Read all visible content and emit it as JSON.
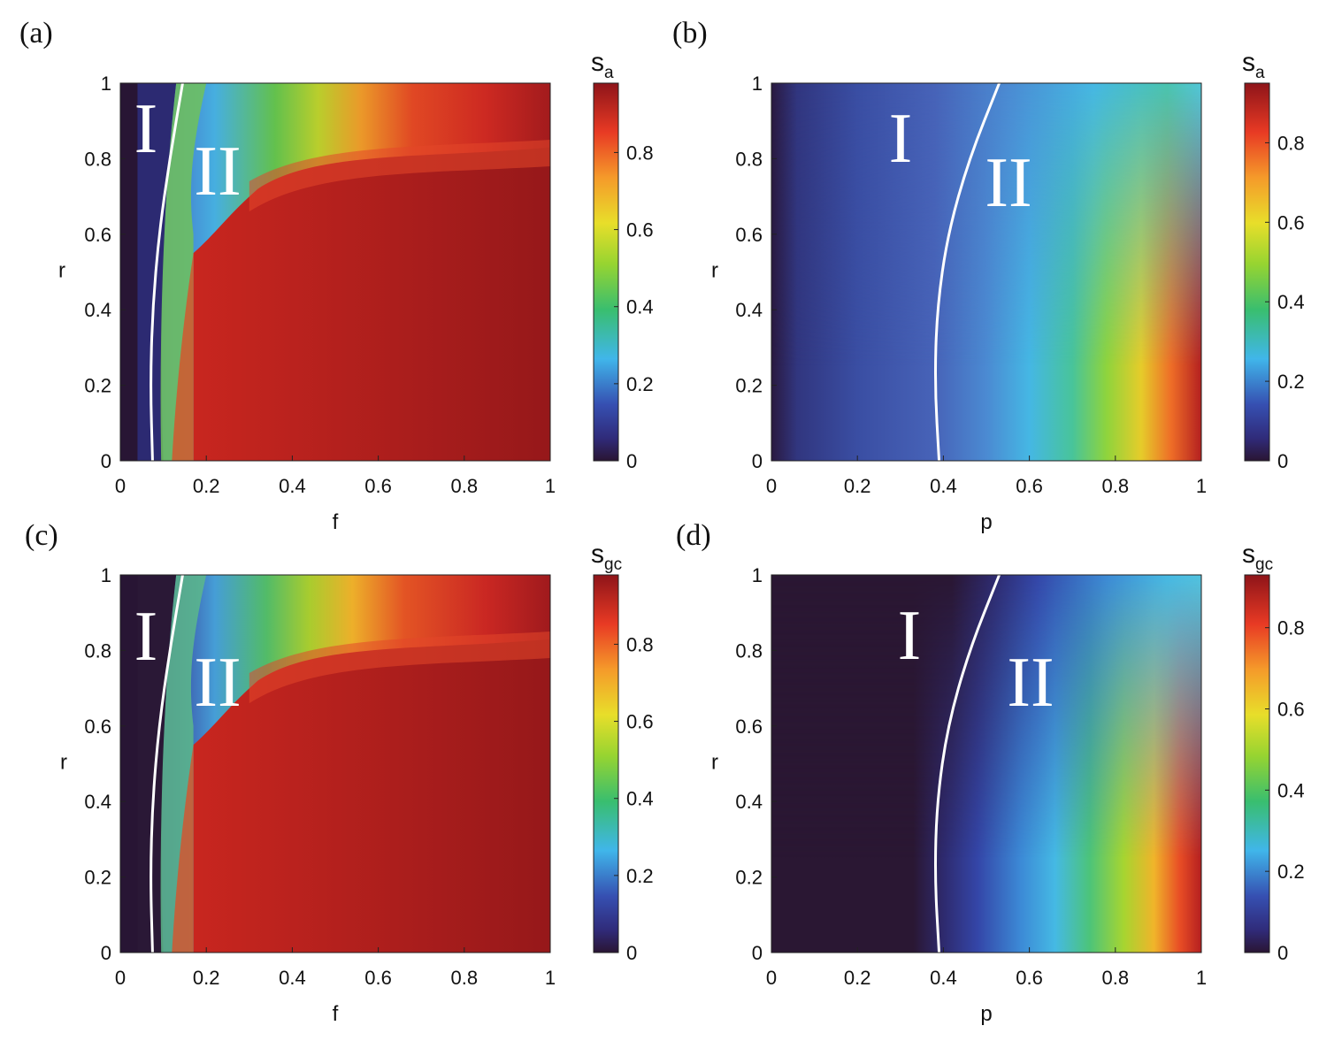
{
  "chart_data": [
    {
      "type": "heatmap",
      "panel_label": "(a)",
      "xlabel": "f",
      "ylabel": "r",
      "xlim": [
        0,
        1
      ],
      "ylim": [
        0,
        1
      ],
      "xticks": [
        "0",
        "0.2",
        "0.4",
        "0.6",
        "0.8",
        "1"
      ],
      "yticks": [
        "0",
        "0.2",
        "0.4",
        "0.6",
        "0.8",
        "1"
      ],
      "colorbar": {
        "label": "s",
        "subscript": "a",
        "range": [
          0,
          0.98
        ],
        "ticks": [
          "0",
          "0.2",
          "0.4",
          "0.6",
          "0.8"
        ],
        "colormap": "jet-like"
      },
      "regions": [
        "I",
        "II"
      ],
      "boundary_curve": [
        [
          0.075,
          0.0
        ],
        [
          0.07,
          0.2
        ],
        [
          0.075,
          0.4
        ],
        [
          0.09,
          0.6
        ],
        [
          0.115,
          0.8
        ],
        [
          0.145,
          1.0
        ]
      ],
      "surface_samples": [
        {
          "f": 0.02,
          "r": 0.5,
          "value": 0.02
        },
        {
          "f": 0.15,
          "r": 0.9,
          "value": 0.25
        },
        {
          "f": 0.4,
          "r": 0.95,
          "value": 0.55
        },
        {
          "f": 0.6,
          "r": 0.3,
          "value": 0.92
        },
        {
          "f": 1.0,
          "r": 0.8,
          "value": 0.97
        }
      ]
    },
    {
      "type": "heatmap",
      "panel_label": "(b)",
      "xlabel": "p",
      "ylabel": "r",
      "xlim": [
        0,
        1
      ],
      "ylim": [
        0,
        1
      ],
      "xticks": [
        "0",
        "0.2",
        "0.4",
        "0.6",
        "0.8",
        "1"
      ],
      "yticks": [
        "0",
        "0.2",
        "0.4",
        "0.6",
        "0.8",
        "1"
      ],
      "colorbar": {
        "label": "s",
        "subscript": "a",
        "range": [
          0,
          0.95
        ],
        "ticks": [
          "0",
          "0.2",
          "0.4",
          "0.6",
          "0.8"
        ],
        "colormap": "jet-like"
      },
      "regions": [
        "I",
        "II"
      ],
      "boundary_curve": [
        [
          0.39,
          0.0
        ],
        [
          0.38,
          0.2
        ],
        [
          0.385,
          0.4
        ],
        [
          0.41,
          0.6
        ],
        [
          0.46,
          0.8
        ],
        [
          0.53,
          1.0
        ]
      ],
      "surface_samples": [
        {
          "p": 0.0,
          "r": 0.5,
          "value": 0.02
        },
        {
          "p": 0.3,
          "r": 0.5,
          "value": 0.1
        },
        {
          "p": 0.6,
          "r": 0.5,
          "value": 0.3
        },
        {
          "p": 0.8,
          "r": 0.2,
          "value": 0.6
        },
        {
          "p": 1.0,
          "r": 0.0,
          "value": 0.95
        }
      ]
    },
    {
      "type": "heatmap",
      "panel_label": "(c)",
      "xlabel": "f",
      "ylabel": "r",
      "xlim": [
        0,
        1
      ],
      "ylim": [
        0,
        1
      ],
      "xticks": [
        "0",
        "0.2",
        "0.4",
        "0.6",
        "0.8",
        "1"
      ],
      "yticks": [
        "0",
        "0.2",
        "0.4",
        "0.6",
        "0.8",
        "1"
      ],
      "colorbar": {
        "label": "s",
        "subscript": "gc",
        "range": [
          0,
          0.98
        ],
        "ticks": [
          "0",
          "0.2",
          "0.4",
          "0.6",
          "0.8"
        ],
        "colormap": "jet-like"
      },
      "regions": [
        "I",
        "II"
      ],
      "boundary_curve": [
        [
          0.075,
          0.0
        ],
        [
          0.07,
          0.2
        ],
        [
          0.075,
          0.4
        ],
        [
          0.09,
          0.6
        ],
        [
          0.115,
          0.8
        ],
        [
          0.145,
          1.0
        ]
      ],
      "surface_samples": [
        {
          "f": 0.02,
          "r": 0.5,
          "value": 0.0
        },
        {
          "f": 0.15,
          "r": 0.9,
          "value": 0.15
        },
        {
          "f": 0.4,
          "r": 0.95,
          "value": 0.5
        },
        {
          "f": 0.6,
          "r": 0.3,
          "value": 0.92
        },
        {
          "f": 1.0,
          "r": 0.8,
          "value": 0.97
        }
      ]
    },
    {
      "type": "heatmap",
      "panel_label": "(d)",
      "xlabel": "p",
      "ylabel": "r",
      "xlim": [
        0,
        1
      ],
      "ylim": [
        0,
        1
      ],
      "xticks": [
        "0",
        "0.2",
        "0.4",
        "0.6",
        "0.8",
        "1"
      ],
      "yticks": [
        "0",
        "0.2",
        "0.4",
        "0.6",
        "0.8",
        "1"
      ],
      "colorbar": {
        "label": "s",
        "subscript": "gc",
        "range": [
          0,
          0.93
        ],
        "ticks": [
          "0",
          "0.2",
          "0.4",
          "0.6",
          "0.8"
        ],
        "colormap": "jet-like"
      },
      "regions": [
        "I",
        "II"
      ],
      "boundary_curve": [
        [
          0.39,
          0.0
        ],
        [
          0.38,
          0.2
        ],
        [
          0.385,
          0.4
        ],
        [
          0.41,
          0.6
        ],
        [
          0.46,
          0.8
        ],
        [
          0.53,
          1.0
        ]
      ],
      "surface_samples": [
        {
          "p": 0.2,
          "r": 0.5,
          "value": 0.0
        },
        {
          "p": 0.5,
          "r": 0.5,
          "value": 0.08
        },
        {
          "p": 0.65,
          "r": 0.5,
          "value": 0.3
        },
        {
          "p": 0.85,
          "r": 0.3,
          "value": 0.6
        },
        {
          "p": 1.0,
          "r": 0.0,
          "value": 0.93
        }
      ]
    }
  ]
}
